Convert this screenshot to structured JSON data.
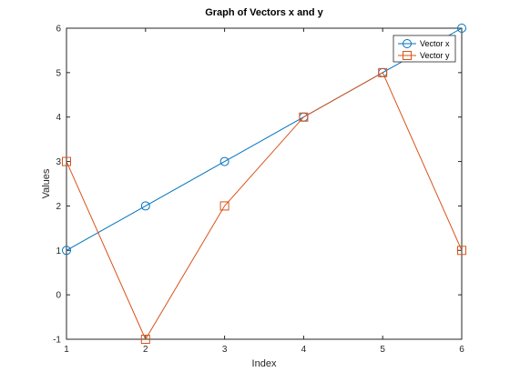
{
  "chart_data": {
    "type": "line",
    "title": "Graph of Vectors x and y",
    "xlabel": "Index",
    "ylabel": "Values",
    "x": [
      1,
      2,
      3,
      4,
      5,
      6
    ],
    "xlim": [
      1,
      6
    ],
    "ylim": [
      -1,
      6
    ],
    "xticks": [
      "1",
      "2",
      "3",
      "4",
      "5",
      "6"
    ],
    "yticks": [
      "-1",
      "0",
      "1",
      "2",
      "3",
      "4",
      "5",
      "6"
    ],
    "grid": false,
    "legend_position": "top-right",
    "series": [
      {
        "name": "Vector x",
        "values": [
          1,
          2,
          3,
          4,
          5,
          6
        ],
        "color": "#0072bd",
        "marker": "circle"
      },
      {
        "name": "Vector y",
        "values": [
          3,
          -1,
          2,
          4,
          5,
          1
        ],
        "color": "#d95319",
        "marker": "square"
      }
    ]
  }
}
